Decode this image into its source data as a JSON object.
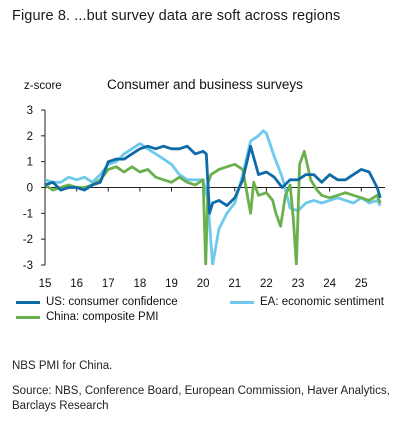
{
  "figure": {
    "title": "Figure 8. ...but survey data are soft across regions",
    "note": "NBS PMI for China.",
    "source": "Source: NBS, Conference Board, European Commission, Haver Analytics, Barclays Research"
  },
  "chart_data": {
    "type": "line",
    "title": "Consumer and business surveys",
    "ylabel": "z-score",
    "xlabel": "",
    "xlim": [
      2015.0,
      2025.75
    ],
    "ylim": [
      -3,
      3
    ],
    "x_ticks": [
      15,
      16,
      17,
      18,
      19,
      20,
      21,
      22,
      23,
      24,
      25
    ],
    "y_ticks": [
      3,
      2,
      1,
      0,
      -1,
      -2,
      -3
    ],
    "grid": false,
    "legend_position": "bottom",
    "series": [
      {
        "name": "US: consumer confidence",
        "color": "#0f6aa8",
        "x": [
          2015.0,
          2015.25,
          2015.5,
          2015.75,
          2016.0,
          2016.25,
          2016.5,
          2016.75,
          2017.0,
          2017.25,
          2017.5,
          2017.75,
          2018.0,
          2018.25,
          2018.5,
          2018.75,
          2019.0,
          2019.25,
          2019.5,
          2019.75,
          2020.0,
          2020.1,
          2020.2,
          2020.3,
          2020.5,
          2020.75,
          2021.0,
          2021.25,
          2021.5,
          2021.75,
          2022.0,
          2022.25,
          2022.5,
          2022.75,
          2023.0,
          2023.25,
          2023.5,
          2023.75,
          2024.0,
          2024.25,
          2024.5,
          2024.75,
          2025.0,
          2025.25,
          2025.5,
          2025.6
        ],
        "values": [
          0.1,
          0.2,
          -0.1,
          0.0,
          0.0,
          -0.1,
          0.1,
          0.2,
          1.0,
          1.1,
          1.1,
          1.3,
          1.5,
          1.6,
          1.5,
          1.6,
          1.5,
          1.5,
          1.6,
          1.3,
          1.4,
          1.3,
          -1.0,
          -0.6,
          -0.5,
          -0.7,
          -0.4,
          0.3,
          1.6,
          0.5,
          0.6,
          0.4,
          0.0,
          0.3,
          0.3,
          0.5,
          0.5,
          0.2,
          0.5,
          0.3,
          0.3,
          0.5,
          0.7,
          0.6,
          0.0,
          -0.4
        ]
      },
      {
        "name": "EA: economic sentiment",
        "color": "#6ec9ec",
        "x": [
          2015.0,
          2015.25,
          2015.5,
          2015.75,
          2016.0,
          2016.25,
          2016.5,
          2016.75,
          2017.0,
          2017.25,
          2017.5,
          2017.75,
          2018.0,
          2018.25,
          2018.5,
          2018.75,
          2019.0,
          2019.25,
          2019.5,
          2019.75,
          2020.0,
          2020.15,
          2020.3,
          2020.5,
          2020.75,
          2021.0,
          2021.25,
          2021.5,
          2021.75,
          2021.9,
          2022.0,
          2022.25,
          2022.5,
          2022.75,
          2023.0,
          2023.25,
          2023.5,
          2023.75,
          2024.0,
          2024.25,
          2024.5,
          2024.75,
          2025.0,
          2025.25,
          2025.5,
          2025.6
        ],
        "values": [
          0.3,
          0.2,
          0.2,
          0.4,
          0.3,
          0.4,
          0.2,
          0.5,
          0.9,
          1.0,
          1.3,
          1.5,
          1.7,
          1.5,
          1.3,
          1.1,
          0.9,
          0.5,
          0.3,
          0.3,
          0.3,
          -0.5,
          -3.0,
          -1.6,
          -1.0,
          -0.6,
          0.5,
          1.8,
          2.0,
          2.2,
          2.1,
          1.2,
          0.4,
          -0.8,
          -0.9,
          -0.6,
          -0.5,
          -0.6,
          -0.5,
          -0.4,
          -0.5,
          -0.6,
          -0.4,
          -0.6,
          -0.5,
          -0.7
        ]
      },
      {
        "name": "China: composite PMI",
        "color": "#6ab04c",
        "x": [
          2015.0,
          2015.25,
          2015.5,
          2015.75,
          2016.0,
          2016.25,
          2016.5,
          2016.75,
          2017.0,
          2017.25,
          2017.5,
          2017.75,
          2018.0,
          2018.25,
          2018.5,
          2018.75,
          2019.0,
          2019.25,
          2019.5,
          2019.75,
          2020.0,
          2020.08,
          2020.16,
          2020.25,
          2020.5,
          2020.75,
          2021.0,
          2021.25,
          2021.5,
          2021.6,
          2021.75,
          2022.0,
          2022.2,
          2022.3,
          2022.45,
          2022.6,
          2022.75,
          2022.85,
          2022.95,
          2023.05,
          2023.2,
          2023.4,
          2023.6,
          2023.75,
          2024.0,
          2024.25,
          2024.5,
          2024.75,
          2025.0,
          2025.25,
          2025.5,
          2025.6
        ],
        "values": [
          0.1,
          -0.1,
          0.0,
          0.1,
          0.0,
          0.0,
          0.1,
          0.3,
          0.7,
          0.8,
          0.6,
          0.8,
          0.6,
          0.7,
          0.4,
          0.3,
          0.2,
          0.4,
          0.2,
          0.1,
          0.3,
          -3.0,
          0.2,
          0.5,
          0.7,
          0.8,
          0.9,
          0.7,
          -1.0,
          0.2,
          -0.3,
          -0.2,
          -0.5,
          -1.0,
          -1.5,
          -0.3,
          0.1,
          -1.2,
          -3.0,
          0.9,
          1.4,
          0.3,
          -0.1,
          -0.3,
          -0.4,
          -0.3,
          -0.2,
          -0.3,
          -0.4,
          -0.5,
          -0.3,
          -0.6
        ]
      }
    ]
  }
}
